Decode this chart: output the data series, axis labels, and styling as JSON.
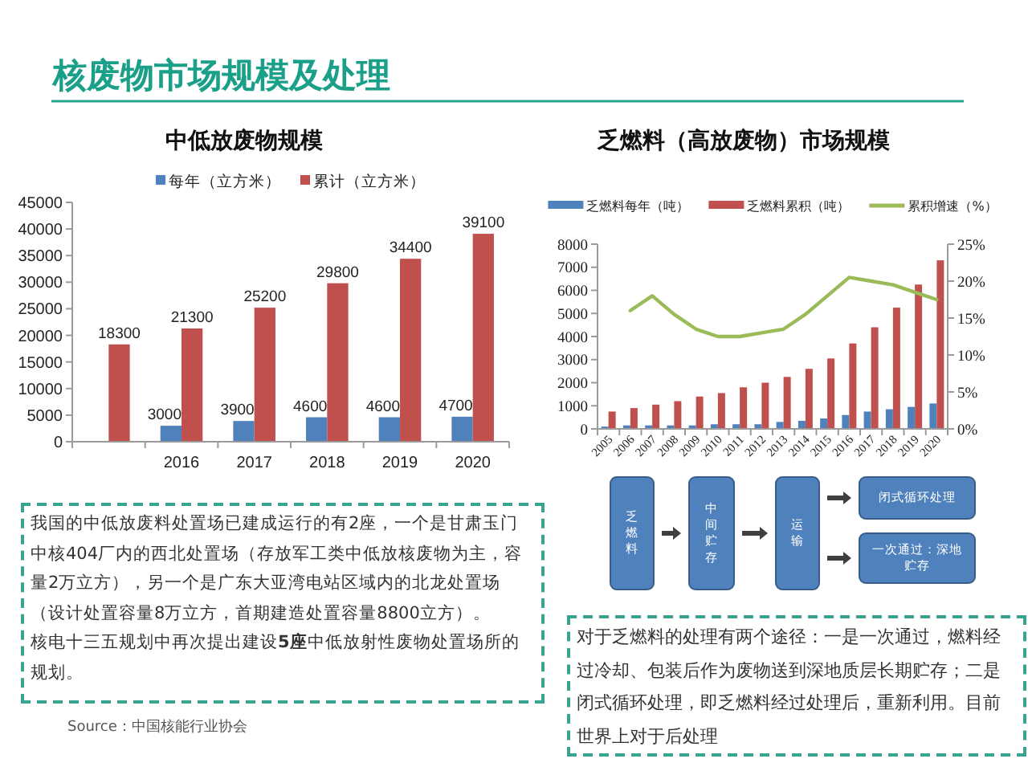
{
  "chart_data": [
    {
      "type": "other",
      "title": "核废物市场规模及处理"
    },
    {
      "type": "bar",
      "title": "中低放废物规模",
      "categories": [
        null,
        "2016",
        "2017",
        "2018",
        "2019",
        "2020"
      ],
      "series": [
        {
          "name": "每年（立方米）",
          "color": "#4f81bd",
          "values": [
            null,
            3000,
            3900,
            4600,
            4600,
            4700
          ]
        },
        {
          "name": "累计（立方米）",
          "color": "#c0504d",
          "values": [
            18300,
            21300,
            25200,
            29800,
            34400,
            39100
          ]
        }
      ],
      "ylim": [
        0,
        45000
      ],
      "yticks": [
        0,
        5000,
        10000,
        15000,
        20000,
        25000,
        30000,
        35000,
        40000,
        45000
      ],
      "data_labels": true,
      "legend": "top",
      "annotations": [
        "Source：中国核能行业协会"
      ]
    },
    {
      "type": "bar",
      "title": "乏燃料（高放废物）市场规模",
      "categories": [
        "2005",
        "2006",
        "2007",
        "2008",
        "2009",
        "2010",
        "2011",
        "2012",
        "2013",
        "2014",
        "2015",
        "2016",
        "2017",
        "2018",
        "2019",
        "2020"
      ],
      "series": [
        {
          "name": "乏燃料每年（吨）",
          "color": "#4f81bd",
          "values": [
            100,
            150,
            150,
            150,
            150,
            200,
            200,
            200,
            300,
            350,
            450,
            600,
            750,
            850,
            950,
            1100
          ]
        },
        {
          "name": "乏燃料累积（吨）",
          "color": "#c0504d",
          "values": [
            750,
            900,
            1050,
            1200,
            1400,
            1550,
            1800,
            2000,
            2250,
            2600,
            3050,
            3700,
            4400,
            5250,
            6250,
            7300
          ]
        },
        {
          "name": "累积增速（%）",
          "type": "line",
          "axis": "y2",
          "color": "#9bbb59",
          "values": [
            null,
            16,
            18,
            15.5,
            13.5,
            12.5,
            12.5,
            13,
            13.5,
            15.5,
            18,
            20.5,
            20,
            19.5,
            18.5,
            17.5
          ]
        }
      ],
      "ylim": [
        0,
        8000
      ],
      "yticks": [
        0,
        1000,
        2000,
        3000,
        4000,
        5000,
        6000,
        7000,
        8000
      ],
      "y2lim": [
        0,
        25
      ],
      "y2ticks": [
        {
          "value": 0,
          "label": "0%"
        },
        {
          "value": 5,
          "label": "5%"
        },
        {
          "value": 10,
          "label": "10%"
        },
        {
          "value": 15,
          "label": "15%"
        },
        {
          "value": 20,
          "label": "20%"
        },
        {
          "value": 25,
          "label": "25%"
        }
      ],
      "legend": "top"
    },
    {
      "type": "other",
      "annotations": [
        "乏燃料",
        "中间贮存",
        "运输",
        "闭式循环处理",
        "一次通过：深地贮存"
      ]
    },
    {
      "type": "other",
      "annotations": [
        "我国的中低放废料处置场已建成运行的有2座，一个是甘肃玉门中核404厂内的西北处置场（存放军工类中低放核废物为主，容量2万立方），另一个是广东大亚湾电站区域内的北龙处置场（设计处置容量8万立方，首期建造处置容量8800立方）。",
        "核电十三五规划中再次提出建设**5座**中低放射性废物处置场所的规划。"
      ]
    },
    {
      "type": "other",
      "annotations": [
        "对于乏燃料的处理有两个途径：一是一次通过，燃料经过冷却、包装后作为废物送到深地质层长期贮存；二是闭式循环处理，即乏燃料经过处理后，重新利用。目前世界上对于后处理"
      ]
    }
  ]
}
